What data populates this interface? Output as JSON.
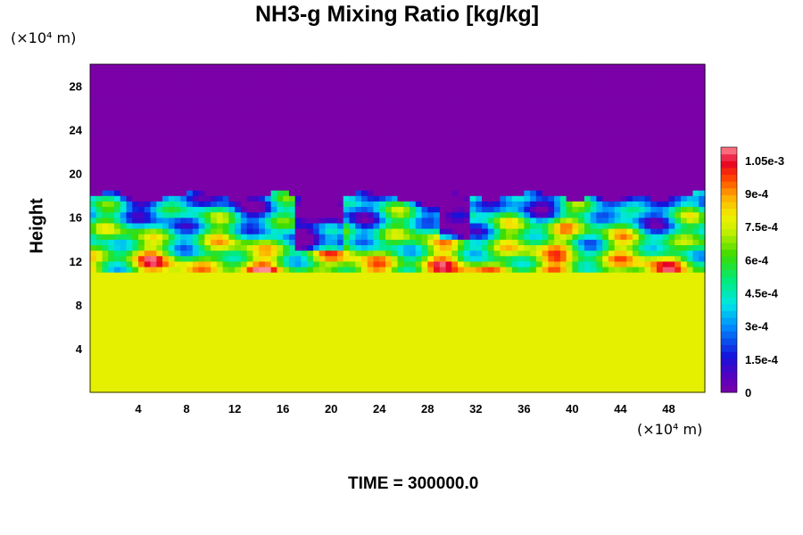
{
  "chart_data": {
    "type": "heatmap",
    "title": "NH3-g Mixing Ratio [kg/kg]",
    "xlabel": "",
    "ylabel": "Height",
    "x_unit": "(×10⁴ m)",
    "y_unit": "(×10⁴ m)",
    "xlim": [
      0,
      51
    ],
    "ylim": [
      0,
      30
    ],
    "x_ticks": [
      4,
      8,
      12,
      16,
      20,
      24,
      28,
      32,
      36,
      40,
      44,
      48
    ],
    "y_ticks": [
      4,
      8,
      12,
      16,
      20,
      24,
      28
    ],
    "colorbar": {
      "min": 0,
      "max": 0.00111,
      "tick_values": [
        0,
        0.00015,
        0.0003,
        0.00045,
        0.0006,
        0.00075,
        0.0009,
        0.00105
      ],
      "tick_labels": [
        "0",
        "1.5e-4",
        "3e-4",
        "4.5e-4",
        "6e-4",
        "7.5e-4",
        "9e-4",
        "1.05e-3"
      ]
    },
    "field_summary": {
      "upper_layer": {
        "y_range": [
          18,
          30
        ],
        "value": 0
      },
      "lower_layer": {
        "y_range": [
          0,
          11
        ],
        "value": 0.00078
      },
      "mixed_layer": {
        "y_range": [
          11,
          18
        ],
        "value_range": [
          0,
          0.00111
        ]
      }
    }
  },
  "footer": {
    "time_label": "TIME = ",
    "time_value": "300000.0"
  },
  "colors": {
    "background": "#ffffff",
    "upper": "#7b00a8",
    "lower": "#e0ff00"
  }
}
